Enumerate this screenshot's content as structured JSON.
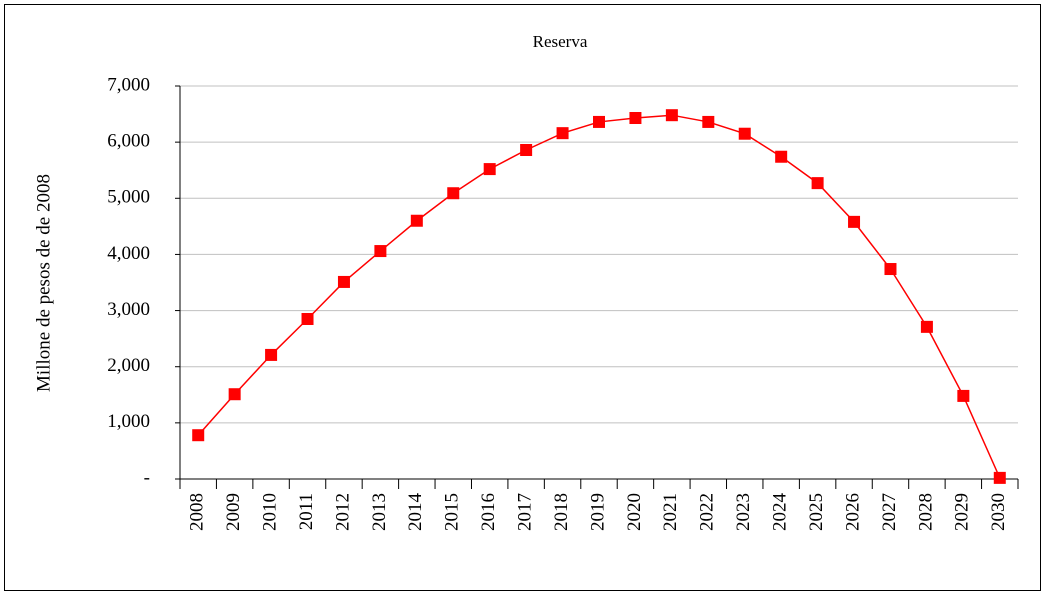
{
  "chart_data": {
    "type": "line",
    "title": "Reserva",
    "ylabel": "Millone de pesos de de 2008",
    "categories": [
      "2008",
      "2009",
      "2010",
      "2011",
      "2012",
      "2013",
      "2014",
      "2015",
      "2016",
      "2017",
      "2018",
      "2019",
      "2020",
      "2021",
      "2022",
      "2023",
      "2024",
      "2025",
      "2026",
      "2027",
      "2028",
      "2029",
      "2030"
    ],
    "series": [
      {
        "name": "Reserva",
        "color": "#ff0000",
        "values": [
          780,
          1510,
          2210,
          2850,
          3510,
          4060,
          4600,
          5090,
          5520,
          5860,
          6160,
          6360,
          6430,
          6480,
          6360,
          6150,
          5740,
          5270,
          4580,
          3740,
          2710,
          1480,
          20
        ]
      }
    ],
    "ylim": [
      0,
      7000
    ],
    "yticks": [
      {
        "value": 0,
        "label": "-"
      },
      {
        "value": 1000,
        "label": "1,000"
      },
      {
        "value": 2000,
        "label": "2,000"
      },
      {
        "value": 3000,
        "label": "3,000"
      },
      {
        "value": 4000,
        "label": "4,000"
      },
      {
        "value": 5000,
        "label": "5,000"
      },
      {
        "value": 6000,
        "label": "6,000"
      },
      {
        "value": 7000,
        "label": "7,000"
      }
    ],
    "grid": true
  }
}
